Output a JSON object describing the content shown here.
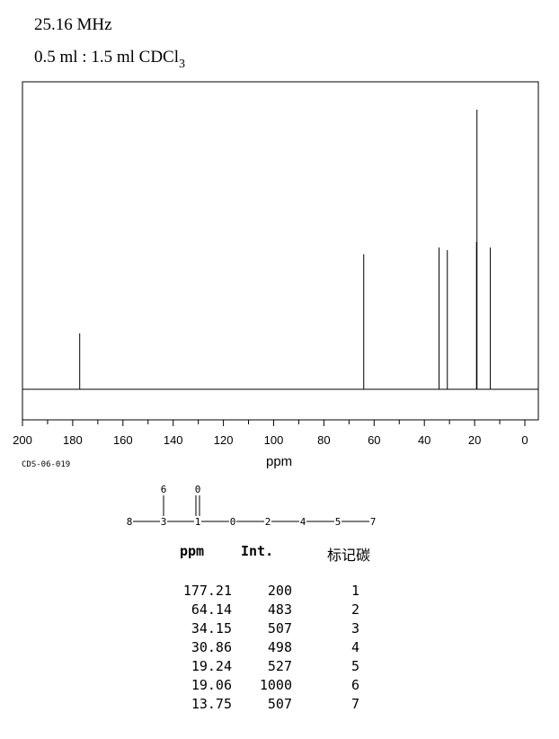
{
  "header": {
    "frequency": "25.16 MHz",
    "solvent_prefix": "0.5 ml : 1.5 ml CDCl",
    "solvent_subscript": "3"
  },
  "spectrum_code": "CDS-06-019",
  "chart_data": {
    "type": "line",
    "xlabel": "ppm",
    "xlim": [
      200,
      0
    ],
    "x_reversed": true,
    "x_ticks": [
      "200",
      "180",
      "160",
      "140",
      "120",
      "100",
      "80",
      "60",
      "40",
      "20",
      "0"
    ],
    "ylabel": "",
    "series": [
      {
        "peaks": [
          {
            "ppm": 177.21,
            "intensity": 200
          },
          {
            "ppm": 64.14,
            "intensity": 483
          },
          {
            "ppm": 34.15,
            "intensity": 507
          },
          {
            "ppm": 30.86,
            "intensity": 498
          },
          {
            "ppm": 19.24,
            "intensity": 527
          },
          {
            "ppm": 19.06,
            "intensity": 1000
          },
          {
            "ppm": 13.75,
            "intensity": 507
          }
        ]
      }
    ]
  },
  "structure": {
    "atoms": [
      "8",
      "3",
      "1",
      "0",
      "2",
      "4",
      "5",
      "7",
      "6",
      "0"
    ]
  },
  "table": {
    "headers": {
      "ppm": "ppm",
      "int": "Int.",
      "carbon": "标记碳"
    },
    "rows": [
      {
        "ppm": "177.21",
        "int": "200",
        "atom": "1"
      },
      {
        "ppm": "64.14",
        "int": "483",
        "atom": "2"
      },
      {
        "ppm": "34.15",
        "int": "507",
        "atom": "3"
      },
      {
        "ppm": "30.86",
        "int": "498",
        "atom": "4"
      },
      {
        "ppm": "19.24",
        "int": "527",
        "atom": "5"
      },
      {
        "ppm": "19.06",
        "int": "1000",
        "atom": "6"
      },
      {
        "ppm": "13.75",
        "int": "507",
        "atom": "7"
      }
    ]
  }
}
